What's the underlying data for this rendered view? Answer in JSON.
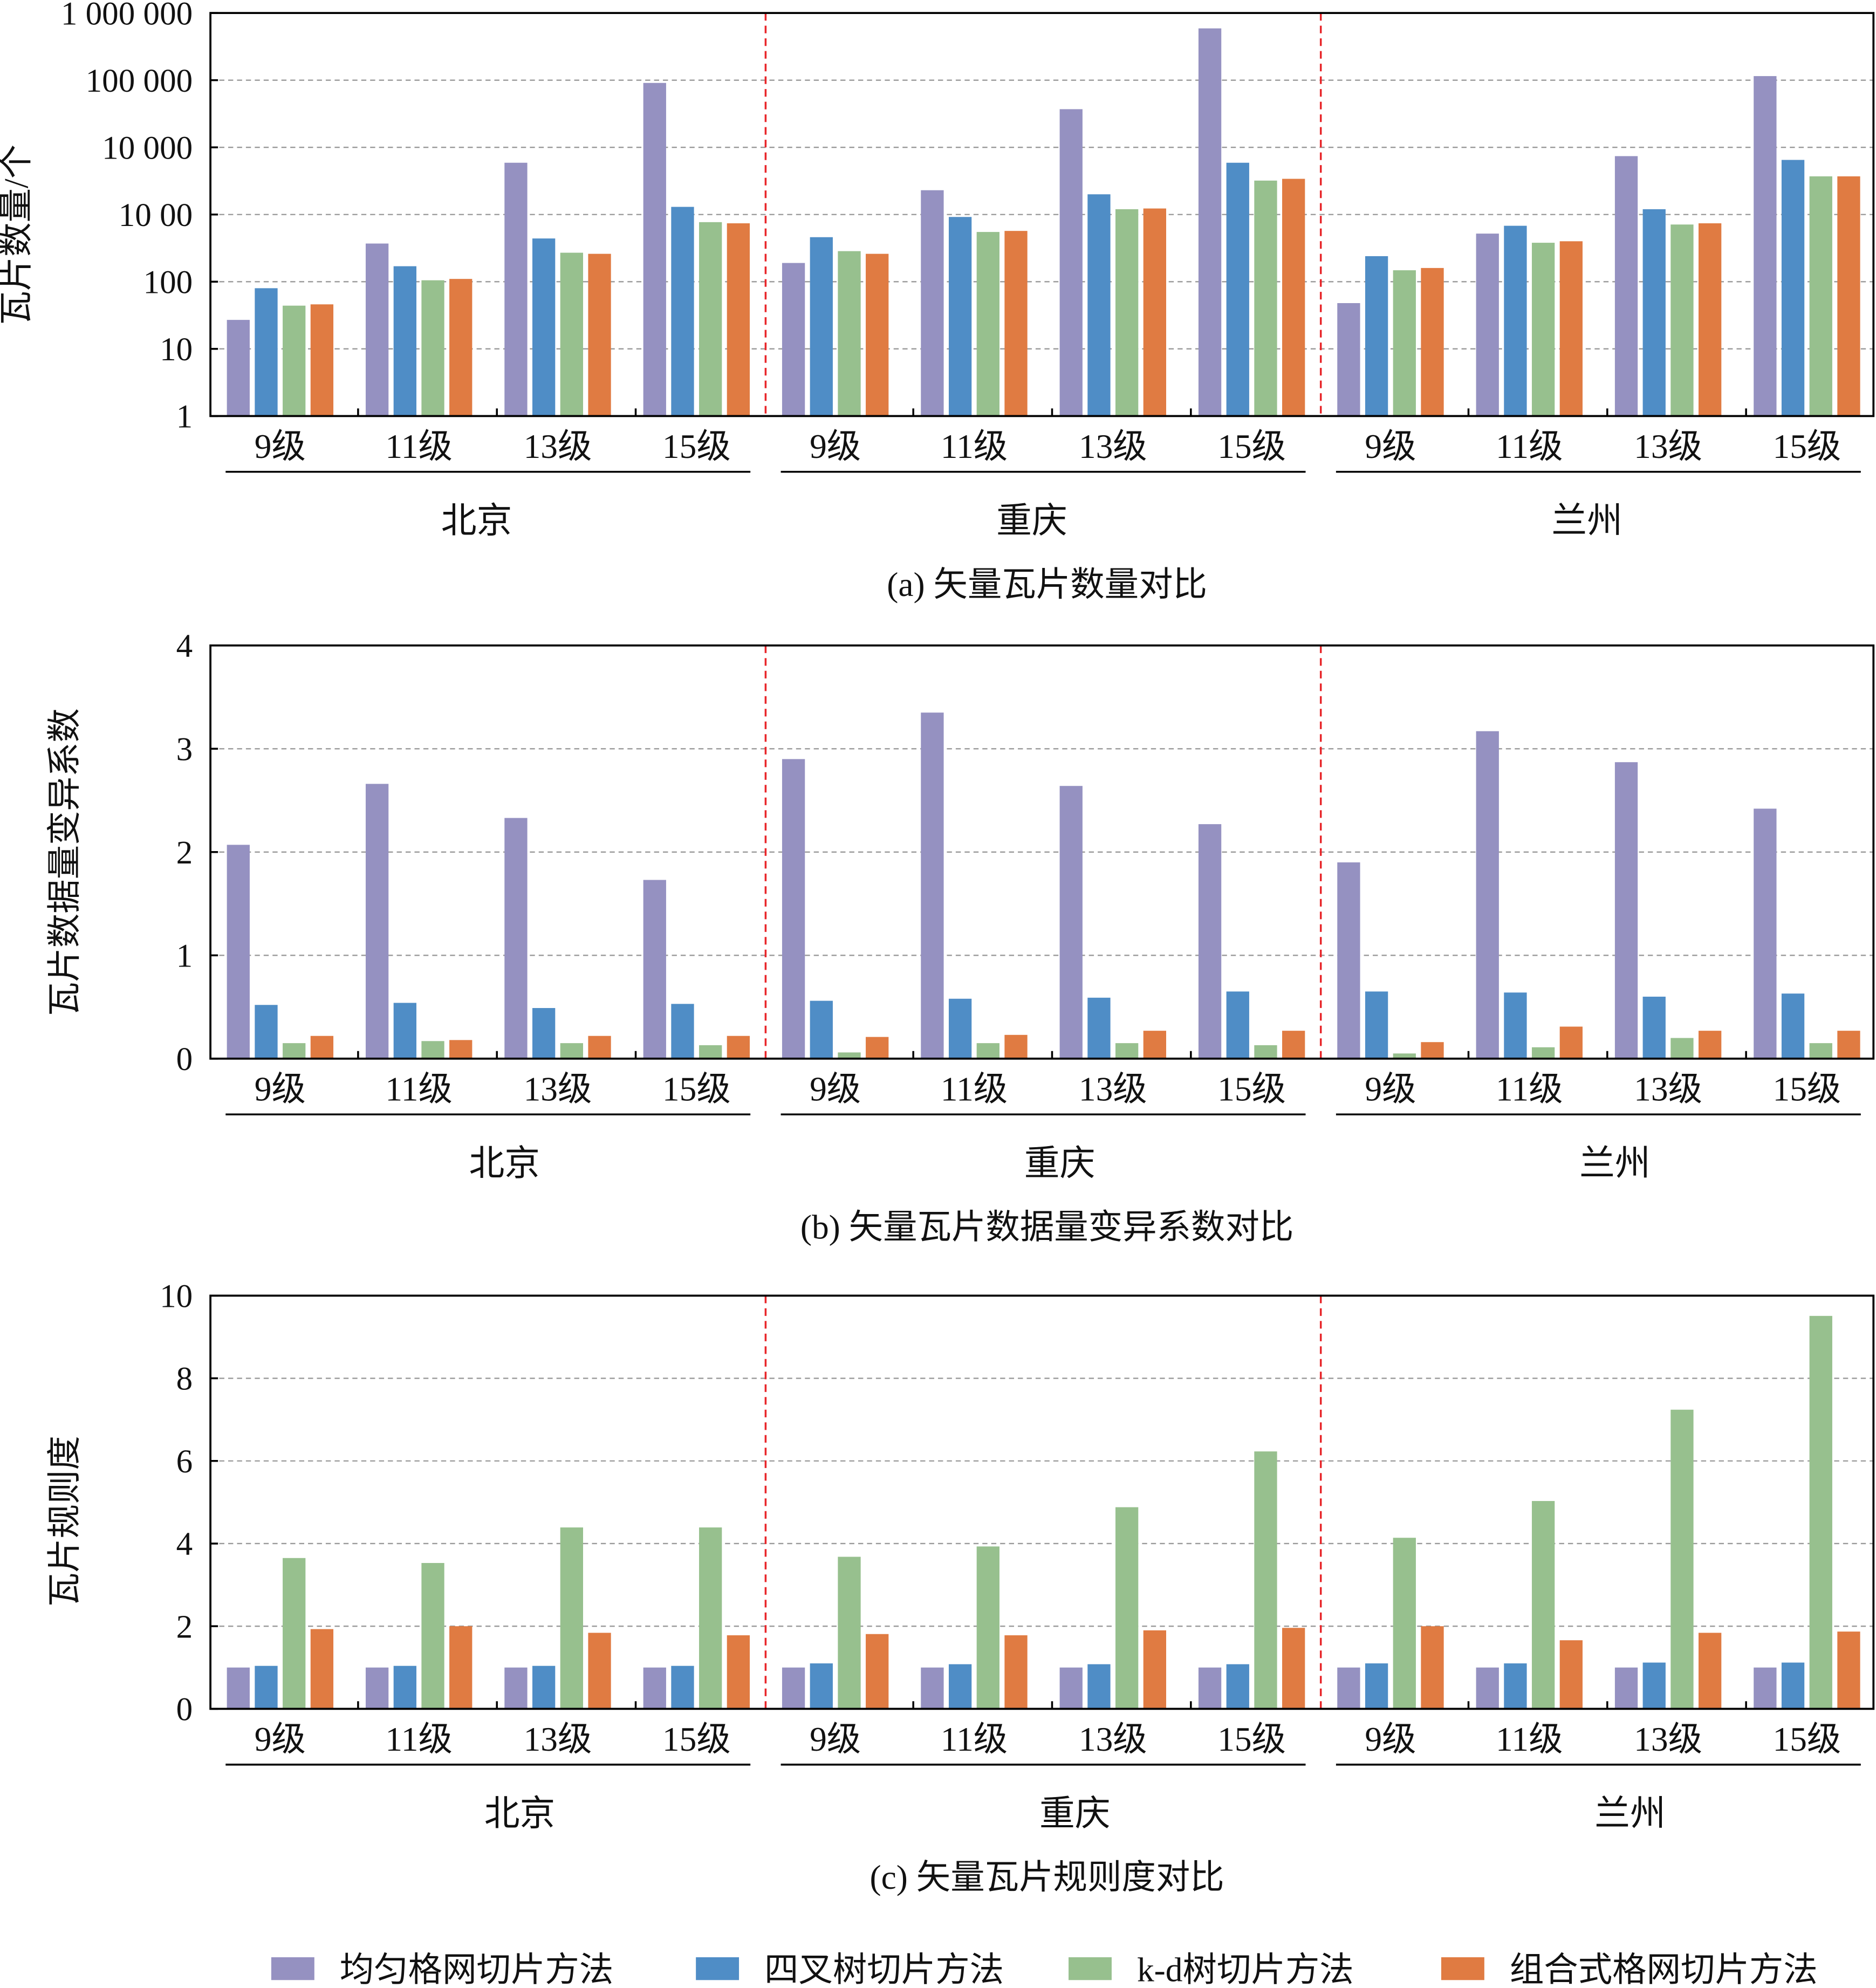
{
  "colors": {
    "uniform_grid": "#9591c1",
    "quadtree": "#4f8dc6",
    "kd_tree": "#97c08e",
    "combined_grid": "#e07b42",
    "city_label": "#e8262a",
    "separator": "#e8262a",
    "grid": "#999999"
  },
  "legend": [
    "均匀格网切片方法",
    "四叉树切片方法",
    "k-d树切片方法",
    "组合式格网切片方法"
  ],
  "cities": [
    "北京",
    "重庆",
    "兰州"
  ],
  "levels": [
    "9级",
    "11级",
    "13级",
    "15级"
  ],
  "chart_data": [
    {
      "type": "bar",
      "title": "(a) 矢量瓦片数量对比",
      "ylabel": "瓦片数量/个",
      "yscale": "log",
      "ylim": [
        1,
        1000000
      ],
      "yticks": [
        1,
        10,
        100,
        1000,
        10000,
        100000,
        1000000
      ],
      "ytick_labels": [
        "1",
        "10",
        "100",
        "10 00",
        "10 000",
        "100 000",
        "1 000 000"
      ],
      "grid": true,
      "series": [
        {
          "name": "均匀格网切片方法",
          "values": [
            27,
            370,
            5900,
            91000,
            190,
            2300,
            37000,
            590000,
            48,
            520,
            7400,
            115000
          ]
        },
        {
          "name": "四叉树切片方法",
          "values": [
            80,
            170,
            440,
            1300,
            460,
            920,
            2000,
            5900,
            240,
            680,
            1200,
            6500
          ]
        },
        {
          "name": "k-d树切片方法",
          "values": [
            44,
            105,
            270,
            770,
            285,
            550,
            1200,
            3200,
            148,
            380,
            710,
            3700
          ]
        },
        {
          "name": "组合式格网切片方法",
          "values": [
            46,
            110,
            260,
            740,
            260,
            570,
            1230,
            3400,
            160,
            400,
            740,
            3700
          ]
        }
      ]
    },
    {
      "type": "bar",
      "title": "(b) 矢量瓦片数据量变异系数对比",
      "ylabel": "瓦片数据量变异系数",
      "yscale": "linear",
      "ylim": [
        0,
        4
      ],
      "yticks": [
        0,
        1,
        2,
        3,
        4
      ],
      "ytick_labels": [
        "0",
        "1",
        "2",
        "3",
        "4"
      ],
      "grid": true,
      "series": [
        {
          "name": "均匀格网切片方法",
          "values": [
            2.07,
            2.66,
            2.33,
            1.73,
            2.9,
            3.35,
            2.64,
            2.27,
            1.9,
            3.17,
            2.87,
            2.42
          ]
        },
        {
          "name": "四叉树切片方法",
          "values": [
            0.52,
            0.54,
            0.49,
            0.53,
            0.56,
            0.58,
            0.59,
            0.65,
            0.65,
            0.64,
            0.6,
            0.63
          ]
        },
        {
          "name": "k-d树切片方法",
          "values": [
            0.15,
            0.17,
            0.15,
            0.13,
            0.06,
            0.15,
            0.15,
            0.13,
            0.05,
            0.11,
            0.2,
            0.15
          ]
        },
        {
          "name": "组合式格网切片方法",
          "values": [
            0.22,
            0.18,
            0.22,
            0.22,
            0.21,
            0.23,
            0.27,
            0.27,
            0.16,
            0.31,
            0.27,
            0.27
          ]
        }
      ]
    },
    {
      "type": "bar",
      "title": "(c) 矢量瓦片规则度对比",
      "ylabel": "瓦片规则度",
      "yscale": "linear",
      "ylim": [
        0,
        10
      ],
      "yticks": [
        0,
        2,
        4,
        6,
        8,
        10
      ],
      "ytick_labels": [
        "0",
        "2",
        "4",
        "6",
        "8",
        "10"
      ],
      "grid": true,
      "series": [
        {
          "name": "均匀格网切片方法",
          "values": [
            1.0,
            1.0,
            1.0,
            1.0,
            1.0,
            1.0,
            1.0,
            1.0,
            1.0,
            1.0,
            1.0,
            1.0
          ]
        },
        {
          "name": "四叉树切片方法",
          "values": [
            1.04,
            1.04,
            1.04,
            1.04,
            1.1,
            1.08,
            1.08,
            1.08,
            1.1,
            1.1,
            1.12,
            1.12
          ]
        },
        {
          "name": "k-d树切片方法",
          "values": [
            3.65,
            3.53,
            4.39,
            4.39,
            3.68,
            3.93,
            4.88,
            6.23,
            4.14,
            5.03,
            7.24,
            9.51
          ]
        },
        {
          "name": "组合式格网切片方法",
          "values": [
            1.93,
            2.0,
            1.84,
            1.78,
            1.81,
            1.78,
            1.9,
            1.96,
            2.0,
            1.66,
            1.84,
            1.87
          ]
        }
      ]
    }
  ]
}
